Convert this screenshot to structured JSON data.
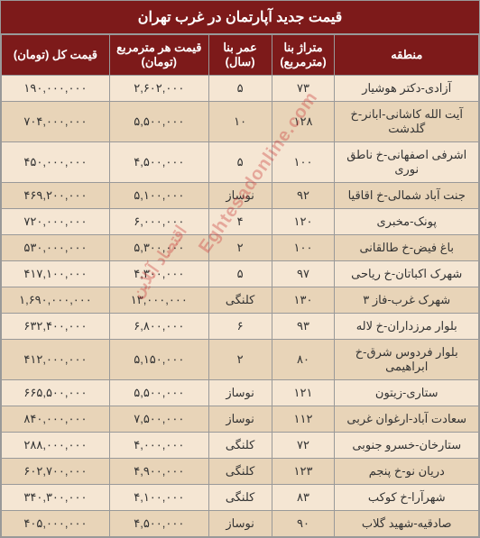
{
  "title": "قیمت جدید آپارتمان در غرب تهران",
  "headers": {
    "region": "منطقه",
    "area": "متراژ بنا (مترمربع)",
    "age": "عمر بنا (سال)",
    "price_sqm": "قیمت هر مترمربع (تومان)",
    "total": "قیمت کل (تومان)"
  },
  "watermark1": "Eghtesadonline.com",
  "watermark2": "اقتصاد آنلاین",
  "rows": [
    {
      "region": "آزادی-دکتر هوشیار",
      "area": "۷۳",
      "age": "۵",
      "price_sqm": "۲,۶۰۲,۰۰۰",
      "total": "۱۹۰,۰۰۰,۰۰۰"
    },
    {
      "region": "آیت الله کاشانی-ابانر-خ گلدشت",
      "area": "۱۲۸",
      "age": "۱۰",
      "price_sqm": "۵,۵۰۰,۰۰۰",
      "total": "۷۰۴,۰۰۰,۰۰۰"
    },
    {
      "region": "اشرفی اصفهانی-خ ناطق نوری",
      "area": "۱۰۰",
      "age": "۵",
      "price_sqm": "۴,۵۰۰,۰۰۰",
      "total": "۴۵۰,۰۰۰,۰۰۰"
    },
    {
      "region": "جنت آباد شمالی-خ اقاقیا",
      "area": "۹۲",
      "age": "نوساز",
      "price_sqm": "۵,۱۰۰,۰۰۰",
      "total": "۴۶۹,۲۰۰,۰۰۰"
    },
    {
      "region": "پونک-مخبری",
      "area": "۱۲۰",
      "age": "۴",
      "price_sqm": "۶,۰۰۰,۰۰۰",
      "total": "۷۲۰,۰۰۰,۰۰۰"
    },
    {
      "region": "باغ فیض-خ طالقانی",
      "area": "۱۰۰",
      "age": "۲",
      "price_sqm": "۵,۳۰۰,۰۰۰",
      "total": "۵۳۰,۰۰۰,۰۰۰"
    },
    {
      "region": "شهرک اکباتان-خ ریاحی",
      "area": "۹۷",
      "age": "۵",
      "price_sqm": "۴,۳۰۰,۰۰۰",
      "total": "۴۱۷,۱۰۰,۰۰۰"
    },
    {
      "region": "شهرک غرب-فاز ۳",
      "area": "۱۳۰",
      "age": "کلنگی",
      "price_sqm": "۱۳,۰۰۰,۰۰۰",
      "total": "۱,۶۹۰,۰۰۰,۰۰۰"
    },
    {
      "region": "بلوار مرزداران-خ لاله",
      "area": "۹۳",
      "age": "۶",
      "price_sqm": "۶,۸۰۰,۰۰۰",
      "total": "۶۳۲,۴۰۰,۰۰۰"
    },
    {
      "region": "بلوار فردوس شرق-خ ابراهیمی",
      "area": "۸۰",
      "age": "۲",
      "price_sqm": "۵,۱۵۰,۰۰۰",
      "total": "۴۱۲,۰۰۰,۰۰۰"
    },
    {
      "region": "ستاری-زیتون",
      "area": "۱۲۱",
      "age": "نوساز",
      "price_sqm": "۵,۵۰۰,۰۰۰",
      "total": "۶۶۵,۵۰۰,۰۰۰"
    },
    {
      "region": "سعادت آباد-ارغوان غربی",
      "area": "۱۱۲",
      "age": "نوساز",
      "price_sqm": "۷,۵۰۰,۰۰۰",
      "total": "۸۴۰,۰۰۰,۰۰۰"
    },
    {
      "region": "ستارخان-خسرو جنوبی",
      "area": "۷۲",
      "age": "کلنگی",
      "price_sqm": "۴,۰۰۰,۰۰۰",
      "total": "۲۸۸,۰۰۰,۰۰۰"
    },
    {
      "region": "دریان نو-خ پنجم",
      "area": "۱۲۳",
      "age": "کلنگی",
      "price_sqm": "۴,۹۰۰,۰۰۰",
      "total": "۶۰۲,۷۰۰,۰۰۰"
    },
    {
      "region": "شهرآرا-خ کوکب",
      "area": "۸۳",
      "age": "کلنگی",
      "price_sqm": "۴,۱۰۰,۰۰۰",
      "total": "۳۴۰,۳۰۰,۰۰۰"
    },
    {
      "region": "صادقیه-شهید گلاب",
      "area": "۹۰",
      "age": "نوساز",
      "price_sqm": "۴,۵۰۰,۰۰۰",
      "total": "۴۰۵,۰۰۰,۰۰۰"
    }
  ],
  "colors": {
    "header_bg": "#7d1a1a",
    "header_text": "#ffffff",
    "row_odd_bg": "#f5e6d3",
    "row_even_bg": "#e8d4b8",
    "border": "#999999",
    "text": "#333333",
    "watermark": "rgba(200,50,50,0.35)"
  }
}
